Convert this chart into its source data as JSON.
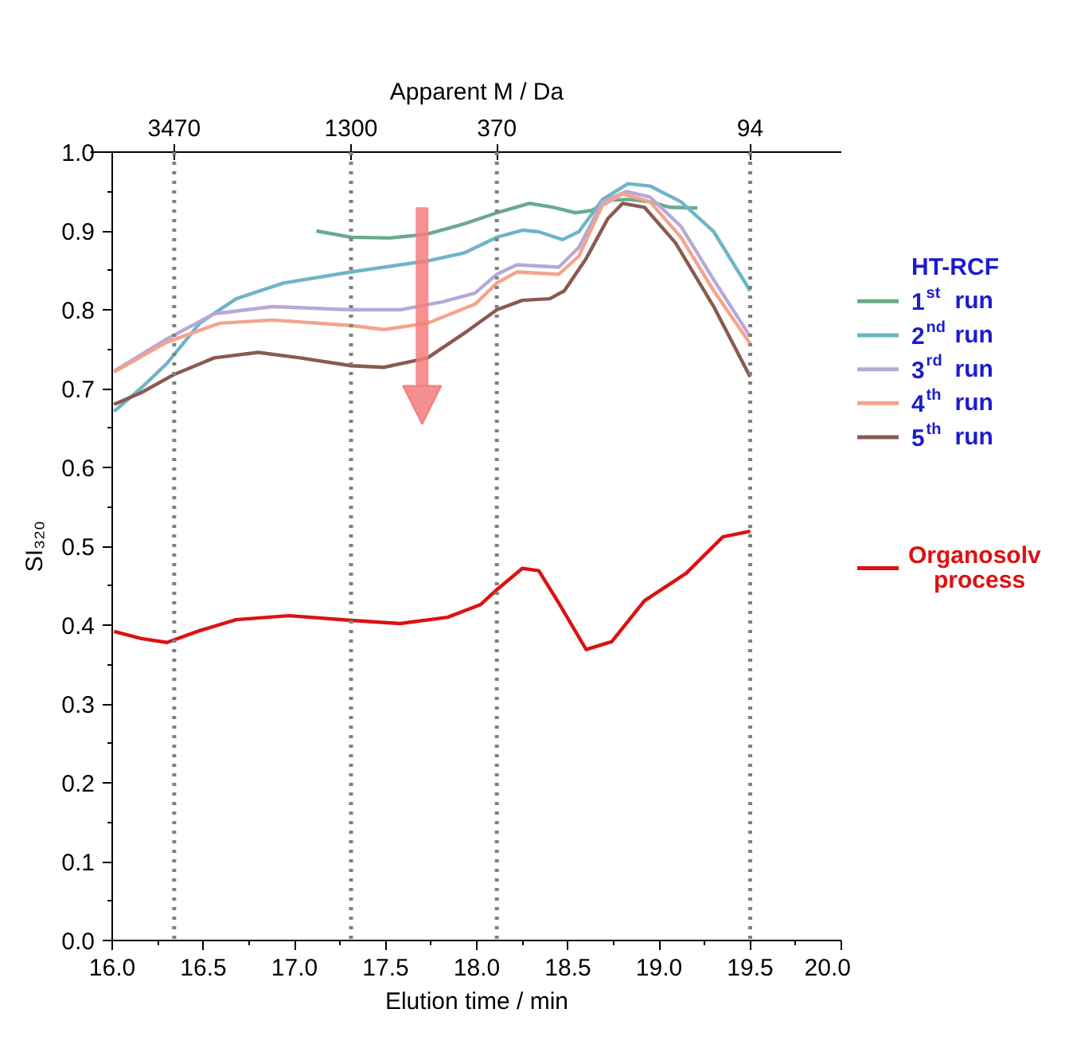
{
  "chart_data": {
    "type": "line",
    "xlabel": "Elution time / min",
    "ylabel": "SI₃₂₀",
    "x2label": "Apparent M / Da",
    "legend_title": "HT-RCF",
    "xlim": [
      16.0,
      20.0
    ],
    "xticks": [
      {
        "value": 16.0,
        "label": "16.0"
      },
      {
        "value": 16.5,
        "label": "16.5"
      },
      {
        "value": 17.0,
        "label": "17.0"
      },
      {
        "value": 17.5,
        "label": "17.5"
      },
      {
        "value": 18.0,
        "label": "18.0"
      },
      {
        "value": 18.5,
        "label": "18.5"
      },
      {
        "value": 19.0,
        "label": "19.0"
      },
      {
        "value": 19.5,
        "label": "19.5"
      },
      {
        "value": 20.0,
        "label": "20.0"
      }
    ],
    "ylim": [
      0.0,
      1.0
    ],
    "yticks": [
      {
        "value": 0.0,
        "label": "0.0"
      },
      0.1,
      0.2,
      0.3,
      0.4,
      0.5,
      0.6,
      0.7,
      0.8,
      0.9,
      {
        "value": 1.0,
        "label": "1.0"
      }
    ],
    "ref_lines": [
      {
        "axis": "x",
        "value": 16.34,
        "color": "#808080",
        "line_style": "dotted"
      },
      {
        "axis": "x",
        "value": 17.31,
        "color": "#808080",
        "line_style": "dotted"
      },
      {
        "axis": "x",
        "value": 18.11,
        "color": "#808080",
        "line_style": "dotted"
      },
      {
        "axis": "x",
        "value": 19.5,
        "color": "#808080",
        "line_style": "dotted"
      }
    ],
    "annotations": [
      {
        "text": "3470",
        "x": 16.34
      },
      {
        "text": "1300",
        "x": 17.31
      },
      {
        "text": "370",
        "x": 18.11
      },
      {
        "text": "94",
        "x": 19.5
      }
    ],
    "grid": false,
    "legend": "right",
    "marker": "none",
    "line_style": "solid",
    "series": [
      {
        "name": "1$^{st}$ run",
        "color": "#6aaa8a",
        "x": [
          17.12,
          17.31,
          17.52,
          17.73,
          17.93,
          18.11,
          18.29,
          18.42,
          18.54,
          18.63,
          18.74,
          18.83,
          18.95,
          19.06,
          19.21
        ],
        "values": [
          0.9,
          0.892,
          0.891,
          0.896,
          0.909,
          0.923,
          0.935,
          0.93,
          0.923,
          0.926,
          0.939,
          0.94,
          0.937,
          0.93,
          0.929
        ]
      },
      {
        "name": "2$^{nd}$ run",
        "color": "#6fb4c8",
        "x": [
          16.01,
          16.16,
          16.3,
          16.48,
          16.68,
          16.94,
          17.31,
          17.73,
          17.93,
          18.11,
          18.25,
          18.34,
          18.47,
          18.56,
          18.69,
          18.83,
          18.95,
          19.12,
          19.3,
          19.5
        ],
        "values": [
          0.671,
          0.701,
          0.732,
          0.783,
          0.814,
          0.834,
          0.848,
          0.862,
          0.872,
          0.892,
          0.901,
          0.899,
          0.889,
          0.899,
          0.94,
          0.96,
          0.957,
          0.937,
          0.899,
          0.824
        ]
      },
      {
        "name": "3$^{rd}$ run",
        "color": "#b7a8d8",
        "x": [
          16.01,
          16.3,
          16.56,
          16.88,
          17.31,
          17.58,
          17.81,
          17.99,
          18.11,
          18.22,
          18.45,
          18.56,
          18.69,
          18.82,
          18.95,
          19.12,
          19.3,
          19.5
        ],
        "values": [
          0.722,
          0.763,
          0.795,
          0.804,
          0.8,
          0.8,
          0.81,
          0.821,
          0.845,
          0.857,
          0.854,
          0.879,
          0.937,
          0.95,
          0.943,
          0.906,
          0.838,
          0.766
        ]
      },
      {
        "name": "4$^{th}$ run",
        "color": "#f4a48c",
        "x": [
          16.01,
          16.3,
          16.59,
          16.88,
          17.31,
          17.49,
          17.73,
          17.99,
          18.11,
          18.22,
          18.45,
          18.56,
          18.69,
          18.8,
          18.95,
          19.12,
          19.3,
          19.5
        ],
        "values": [
          0.721,
          0.759,
          0.783,
          0.787,
          0.78,
          0.775,
          0.783,
          0.807,
          0.834,
          0.848,
          0.845,
          0.868,
          0.933,
          0.947,
          0.937,
          0.892,
          0.824,
          0.757
        ]
      },
      {
        "name": "5$^{th}$ run",
        "color": "#8a5a50",
        "x": [
          16.01,
          16.16,
          16.34,
          16.56,
          16.8,
          17.03,
          17.31,
          17.49,
          17.73,
          17.93,
          18.11,
          18.25,
          18.4,
          18.48,
          18.6,
          18.72,
          18.8,
          18.92,
          19.09,
          19.3,
          19.5
        ],
        "values": [
          0.68,
          0.695,
          0.718,
          0.739,
          0.746,
          0.739,
          0.729,
          0.727,
          0.739,
          0.77,
          0.8,
          0.812,
          0.814,
          0.824,
          0.865,
          0.916,
          0.935,
          0.93,
          0.885,
          0.804,
          0.715
        ]
      },
      {
        "name": "Organosolv process",
        "color": "#dd1111",
        "x": [
          16.01,
          16.16,
          16.3,
          16.48,
          16.68,
          16.97,
          17.31,
          17.58,
          17.84,
          18.02,
          18.11,
          18.25,
          18.34,
          18.45,
          18.6,
          18.74,
          18.92,
          19.15,
          19.35,
          19.5
        ],
        "values": [
          0.392,
          0.383,
          0.378,
          0.393,
          0.407,
          0.412,
          0.406,
          0.402,
          0.41,
          0.426,
          0.445,
          0.472,
          0.469,
          0.428,
          0.369,
          0.379,
          0.431,
          0.466,
          0.512,
          0.519
        ]
      }
    ]
  }
}
